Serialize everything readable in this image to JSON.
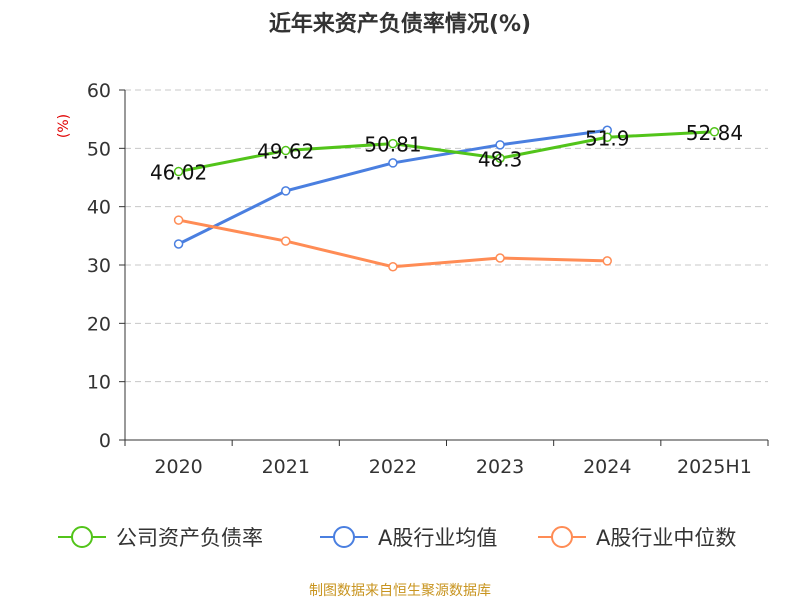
{
  "chart_data": {
    "type": "line",
    "title": "近年来资产负债率情况(%)",
    "ylabel": "(%)",
    "xlabel": "",
    "categories": [
      "2020",
      "2021",
      "2022",
      "2023",
      "2024",
      "2025H1"
    ],
    "ylim": [
      0,
      60
    ],
    "yticks": [
      0,
      10,
      20,
      30,
      40,
      50,
      60
    ],
    "grid": true,
    "legend_position": "bottom",
    "series": [
      {
        "name": "公司资产负债率",
        "color": "#52c41a",
        "values": [
          46.02,
          49.62,
          50.81,
          48.3,
          51.9,
          52.84
        ],
        "labels": [
          "46.02",
          "49.62",
          "50.81",
          "48.3",
          "51.9",
          "52.84"
        ]
      },
      {
        "name": "A股行业均值",
        "color": "#4a7fe0",
        "values": [
          33.6,
          42.7,
          47.5,
          50.6,
          53.1,
          null
        ]
      },
      {
        "name": "A股行业中位数",
        "color": "#ff8c55",
        "values": [
          37.7,
          34.1,
          29.7,
          31.2,
          30.7,
          null
        ]
      }
    ]
  },
  "source": "制图数据来自恒生聚源数据库"
}
